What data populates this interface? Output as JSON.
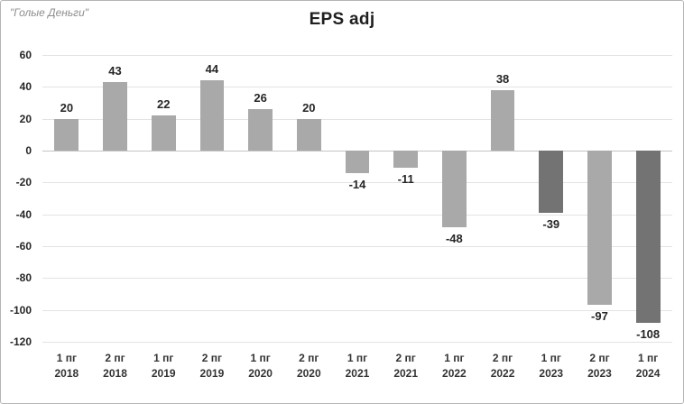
{
  "watermark": "\"Голые Деньги\"",
  "title": "EPS adj",
  "chart_data": {
    "type": "bar",
    "title": "EPS adj",
    "categories": [
      [
        "1 пг",
        "2018"
      ],
      [
        "2 пг",
        "2018"
      ],
      [
        "1 пг",
        "2019"
      ],
      [
        "2 пг",
        "2019"
      ],
      [
        "1 пг",
        "2020"
      ],
      [
        "2 пг",
        "2020"
      ],
      [
        "1 пг",
        "2021"
      ],
      [
        "2 пг",
        "2021"
      ],
      [
        "1 пг",
        "2022"
      ],
      [
        "2 пг",
        "2022"
      ],
      [
        "1 пг",
        "2023"
      ],
      [
        "2 пг",
        "2023"
      ],
      [
        "1 пг",
        "2024"
      ]
    ],
    "values": [
      20,
      43,
      22,
      44,
      26,
      20,
      -14,
      -11,
      -48,
      38,
      -39,
      -97,
      -108
    ],
    "highlight_indices": [
      10,
      12
    ],
    "bar_color": "#a9a9a9",
    "highlight_color": "#737373",
    "yticks": [
      60,
      40,
      20,
      0,
      -20,
      -40,
      -60,
      -80,
      -100,
      -120
    ],
    "ylim": [
      -120,
      60
    ],
    "grid": true,
    "legend": false,
    "xlabel": "",
    "ylabel": ""
  }
}
